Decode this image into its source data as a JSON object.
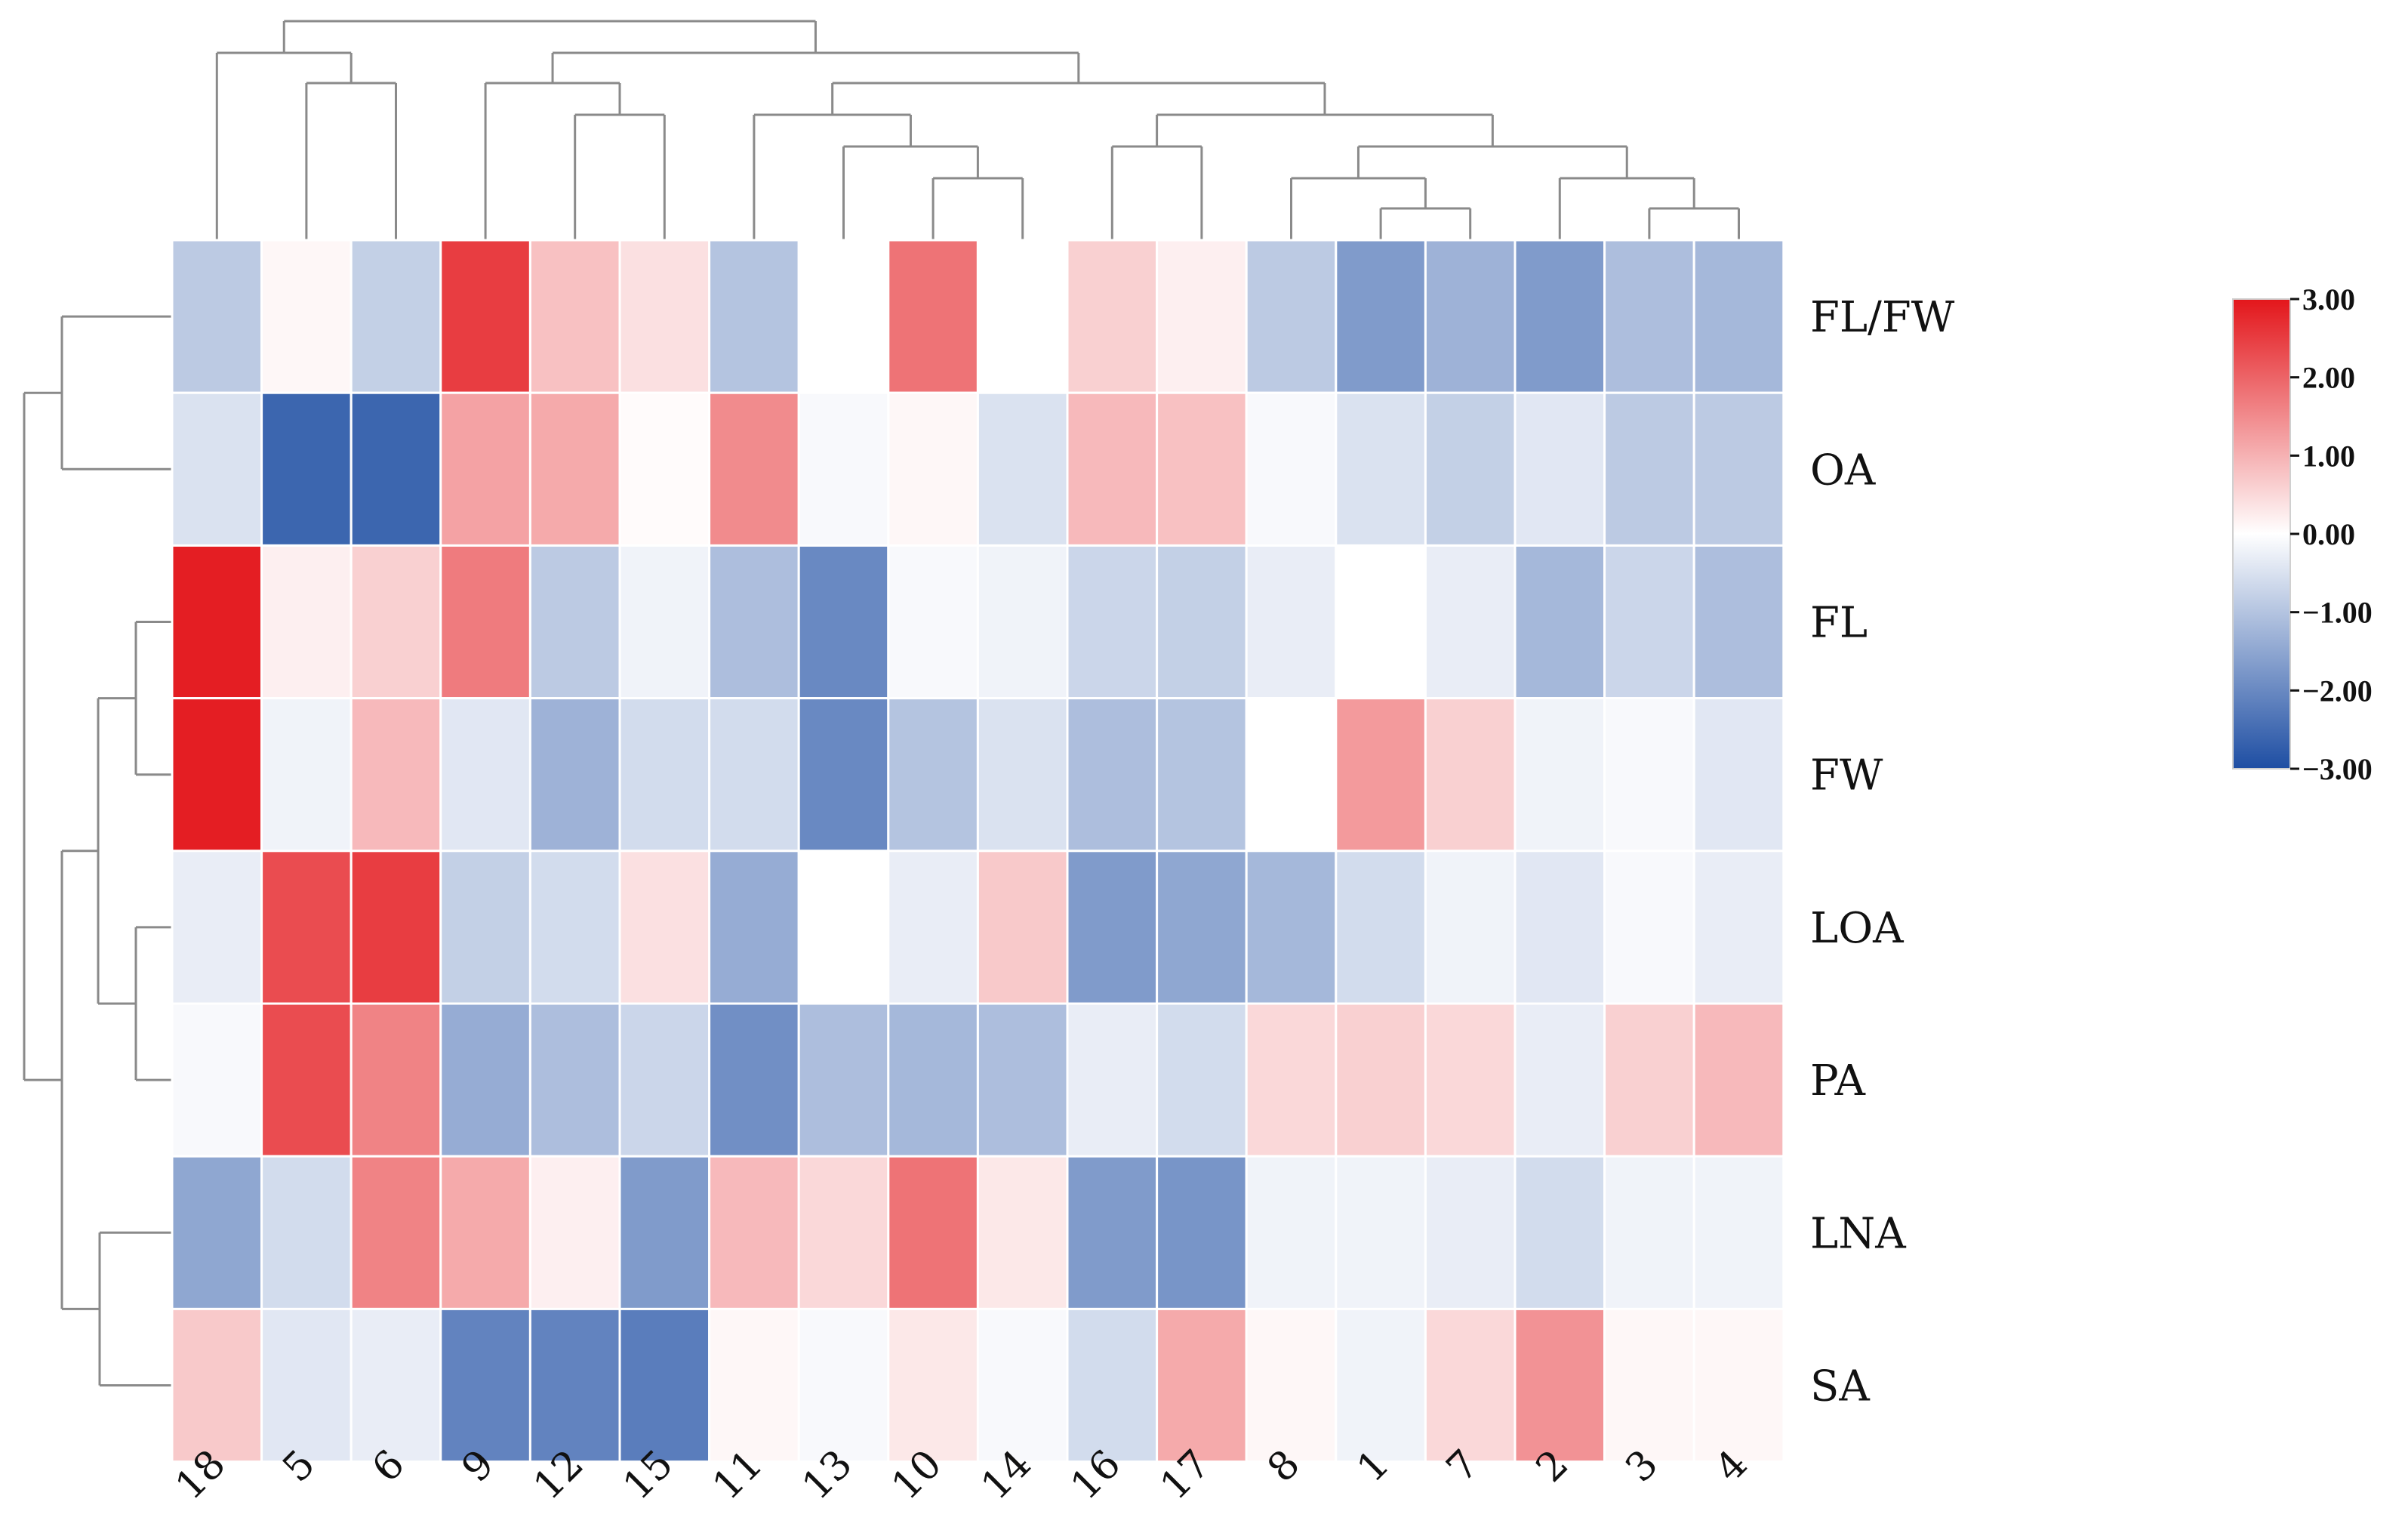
{
  "chart_data": {
    "type": "heatmap",
    "title": "",
    "columns": [
      "18",
      "5",
      "6",
      "9",
      "12",
      "15",
      "11",
      "13",
      "10",
      "14",
      "16",
      "17",
      "8",
      "1",
      "7",
      "2",
      "3",
      "4"
    ],
    "rows": [
      "FL/FW",
      "OA",
      "FL",
      "FW",
      "LOA",
      "PA",
      "LNA",
      "SA"
    ],
    "values": [
      [
        -0.9,
        0.1,
        -0.8,
        2.5,
        0.8,
        0.4,
        -1.0,
        0.0,
        1.8,
        0.0,
        0.6,
        0.2,
        -0.9,
        -1.7,
        -1.3,
        -1.7,
        -1.1,
        -1.2
      ],
      [
        -0.5,
        -2.6,
        -2.6,
        1.2,
        1.1,
        0.05,
        1.5,
        -0.1,
        0.1,
        -0.5,
        0.9,
        0.8,
        -0.1,
        -0.5,
        -0.8,
        -0.4,
        -0.9,
        -0.9
      ],
      [
        2.9,
        0.2,
        0.6,
        1.7,
        -0.9,
        -0.2,
        -1.1,
        -2.0,
        -0.1,
        -0.2,
        -0.7,
        -0.8,
        -0.3,
        0.0,
        -0.3,
        -1.2,
        -0.7,
        -1.1
      ],
      [
        2.9,
        -0.2,
        0.9,
        -0.4,
        -1.3,
        -0.6,
        -0.6,
        -2.0,
        -1.0,
        -0.5,
        -1.1,
        -1.0,
        0.0,
        1.3,
        0.6,
        -0.2,
        -0.1,
        -0.4
      ],
      [
        -0.3,
        2.3,
        2.5,
        -0.8,
        -0.6,
        0.4,
        -1.4,
        0.0,
        -0.3,
        0.7,
        -1.7,
        -1.5,
        -1.2,
        -0.6,
        -0.2,
        -0.4,
        -0.1,
        -0.3
      ],
      [
        -0.1,
        2.3,
        1.6,
        -1.4,
        -1.1,
        -0.7,
        -1.9,
        -1.1,
        -1.2,
        -1.1,
        -0.3,
        -0.6,
        0.5,
        0.6,
        0.5,
        -0.3,
        0.6,
        0.9
      ],
      [
        -1.5,
        -0.6,
        1.6,
        1.1,
        0.2,
        -1.7,
        0.9,
        0.5,
        1.8,
        0.3,
        -1.7,
        -1.8,
        -0.2,
        -0.2,
        -0.3,
        -0.6,
        -0.2,
        -0.2
      ],
      [
        0.7,
        -0.4,
        -0.3,
        -2.1,
        -2.1,
        -2.2,
        0.1,
        -0.1,
        0.3,
        -0.1,
        -0.6,
        1.1,
        0.1,
        -0.2,
        0.5,
        1.4,
        0.1,
        0.1
      ]
    ],
    "color_scale": {
      "min": -3.0,
      "max": 3.0,
      "low_color": "#1e4ea3",
      "mid_color": "#ffffff",
      "high_color": "#e3161b",
      "ticks": [
        "3.00",
        "2.00",
        "1.00",
        "0.00",
        "−1.00",
        "−2.00",
        "−3.00"
      ]
    },
    "grid_color": "#ffffff",
    "dendrogram_color": "#8a8a8a"
  }
}
